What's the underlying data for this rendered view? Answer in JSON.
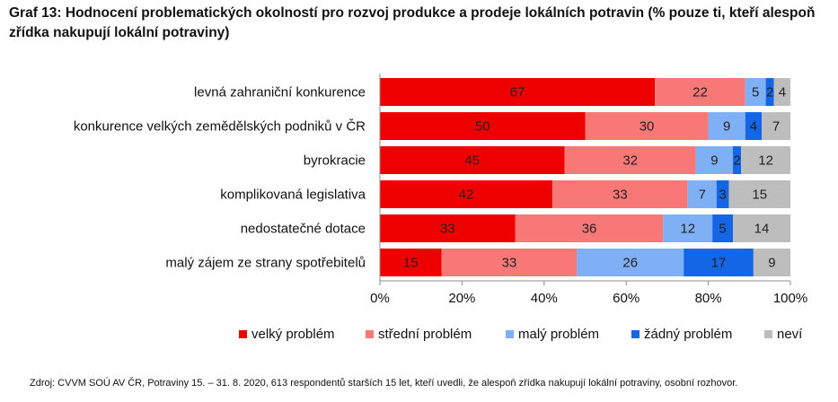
{
  "title": "Graf 13: Hodnocení problematických okolností pro rozvoj produkce a prodeje lokálních potravin (% pouze ti, kteří alespoň zřídka nakupují lokální potraviny)",
  "source": "Zdroj: CVVM SOÚ AV ČR, Potraviny 15. – 31. 8. 2020, 613 respondentů starších 15 let, kteří uvedli, že alespoň zřídka nakupují lokální potraviny, osobní rozhovor.",
  "chart_data": {
    "type": "bar",
    "orientation": "horizontal",
    "stacked": true,
    "categories": [
      "levná zahraniční konkurence",
      "konkurence velkých zemědělských podniků v ČR",
      "byrokracie",
      "komplikovaná legislativa",
      "nedostatečné dotace",
      "malý zájem ze strany spotřebitelů"
    ],
    "series": [
      {
        "name": "velký problém",
        "color": "#ee0000",
        "values": [
          67,
          50,
          45,
          42,
          33,
          15
        ]
      },
      {
        "name": "střední problém",
        "color": "#f87878",
        "values": [
          22,
          30,
          32,
          33,
          36,
          33
        ]
      },
      {
        "name": "malý problém",
        "color": "#7fb0f5",
        "values": [
          5,
          9,
          9,
          7,
          12,
          26
        ]
      },
      {
        "name": "žádný problém",
        "color": "#1466e6",
        "values": [
          2,
          4,
          2,
          3,
          5,
          17
        ]
      },
      {
        "name": "neví",
        "color": "#bdbdbd",
        "values": [
          4,
          7,
          12,
          15,
          14,
          9
        ]
      }
    ],
    "xticks": [
      "0%",
      "20%",
      "40%",
      "60%",
      "80%",
      "100%"
    ],
    "xlim": [
      0,
      100
    ],
    "grid": false,
    "legend": "bottom"
  }
}
